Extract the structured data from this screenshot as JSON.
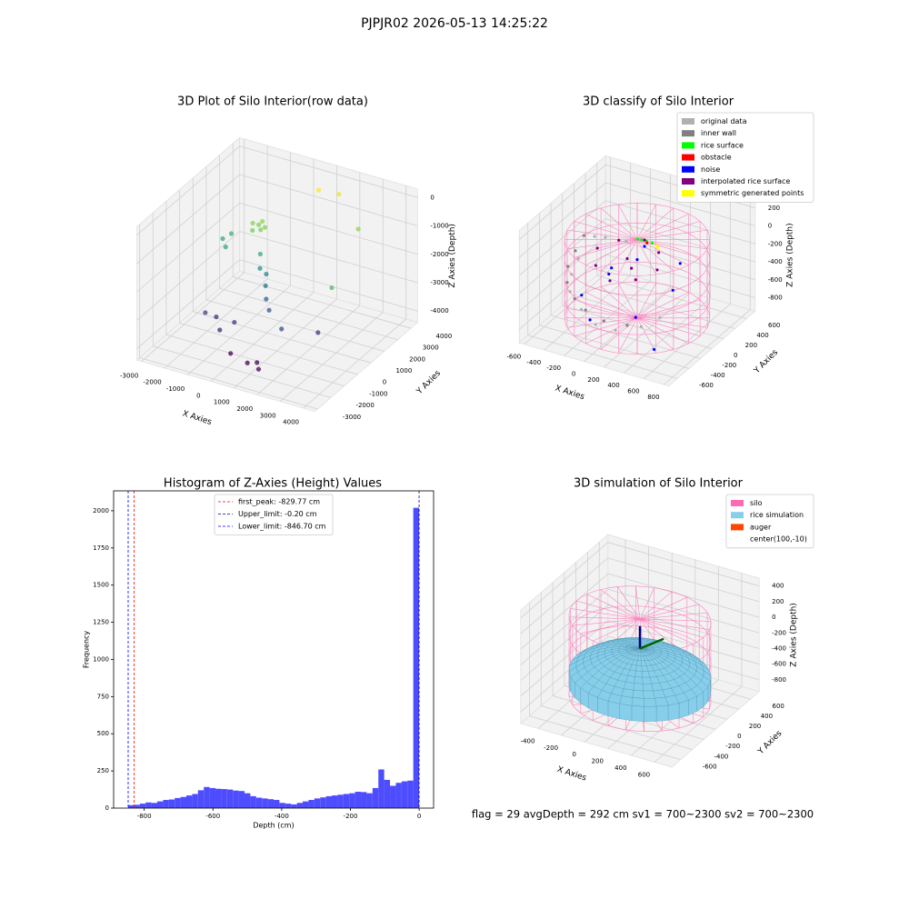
{
  "suptitle": "PJPJR02 2026-05-13 14:25:22",
  "footer": "flag = 29  avgDepth = 292 cm  sv1 = 700~2300  sv2 = 700~2300",
  "chart_data": [
    {
      "type": "scatter3d",
      "title": "3D Plot of Silo Interior(row data)",
      "xlabel": "X Axies",
      "ylabel": "Y Axies",
      "zlabel": "Z Axies (Depth)",
      "xlim": [
        -3200,
        4500
      ],
      "ylim": [
        -3200,
        4500
      ],
      "zlim": [
        -4400,
        300
      ],
      "xticks": [
        -3000,
        -2000,
        -1000,
        0,
        1000,
        2000,
        3000,
        4000
      ],
      "yticks": [
        -3000,
        -2000,
        -1000,
        0,
        1000,
        2000,
        3000,
        4000
      ],
      "zticks": [
        -4000,
        -3000,
        -2000,
        -1000,
        0
      ],
      "colormap": "viridis",
      "x": [
        -900,
        -700,
        -500,
        -800,
        -600,
        -400,
        -2200,
        -2000,
        -1900,
        -400,
        -300,
        -200,
        0,
        200,
        500,
        1500,
        2500,
        -1800,
        -1500,
        -1000,
        -600,
        600,
        900,
        1200,
        -300,
        800,
        1500,
        2800,
        3500
      ],
      "y": [
        1500,
        1600,
        1400,
        1300,
        1700,
        1550,
        1500,
        1800,
        1200,
        1200,
        1000,
        1300,
        900,
        600,
        300,
        -500,
        500,
        -500,
        -200,
        -800,
        -400,
        -1500,
        -1300,
        -1700,
        -1200,
        3500,
        3800,
        3000,
        -200
      ],
      "z": [
        -950,
        -1000,
        -1050,
        -1100,
        -900,
        -1000,
        -1800,
        -1700,
        -1900,
        -1800,
        -2200,
        -2500,
        -2700,
        -3000,
        -3200,
        -3300,
        -3600,
        -3500,
        -3700,
        -3800,
        -3600,
        -4300,
        -4300,
        -4300,
        -4300,
        -200,
        -300,
        -900,
        -1500
      ]
    },
    {
      "type": "scatter3d",
      "title": "3D classify of Silo Interior",
      "xlabel": "X Axies",
      "ylabel": "Y Axies",
      "zlabel": "Z Axies (Depth)",
      "xlim": [
        -650,
        850
      ],
      "ylim": [
        -750,
        750
      ],
      "zlim": [
        -950,
        300
      ],
      "xticks": [
        -600,
        -400,
        -200,
        0,
        200,
        400,
        600,
        800
      ],
      "yticks": [
        -600,
        -400,
        -200,
        0,
        200,
        400,
        600
      ],
      "zticks": [
        -800,
        -600,
        -400,
        -200,
        0,
        200
      ],
      "silo": true,
      "legend": "upper right",
      "series": [
        {
          "name": "original data",
          "color": "#b0b0b0",
          "x": [
            -500,
            -450,
            -300,
            -550,
            -500,
            -400,
            -200,
            0,
            200,
            400,
            500
          ],
          "y": [
            300,
            400,
            500,
            100,
            -100,
            -300,
            -450,
            -550,
            -550,
            -450,
            -300
          ],
          "z": [
            -300,
            -350,
            -400,
            -450,
            -500,
            -550,
            -600,
            -650,
            -650,
            -600,
            -550
          ]
        },
        {
          "name": "inner wall",
          "color": "#808080",
          "x": [
            -550,
            -520,
            -480,
            -400,
            -250,
            -100,
            100,
            300
          ],
          "y": [
            200,
            0,
            -200,
            -350,
            -480,
            -550,
            -580,
            -520
          ],
          "z": [
            -250,
            -300,
            -350,
            -420,
            -480,
            -520,
            -560,
            -580
          ]
        },
        {
          "name": "rice surface",
          "color": "#00ff00",
          "x": [
            0,
            50,
            100,
            -30
          ],
          "y": [
            250,
            250,
            260,
            230
          ],
          "z": [
            -150,
            -150,
            -160,
            -140
          ]
        },
        {
          "name": "obstacle",
          "color": "#ff0000",
          "x": [
            60
          ],
          "y": [
            240
          ],
          "z": [
            -160
          ]
        },
        {
          "name": "noise",
          "color": "#0000ff",
          "x": [
            -300,
            200,
            400,
            -100,
            0,
            -200,
            500,
            300,
            -400,
            100
          ],
          "y": [
            200,
            -200,
            100,
            -100,
            300,
            -300,
            -400,
            400,
            -100,
            0
          ],
          "z": [
            -600,
            -700,
            -500,
            -300,
            -250,
            -800,
            -850,
            -400,
            -700,
            -200
          ]
        },
        {
          "name": "interpolated rice surface",
          "color": "#800080",
          "x": [
            -300,
            -200,
            0,
            200,
            300,
            200,
            0,
            -200,
            0,
            100
          ],
          "y": [
            0,
            -200,
            -300,
            -200,
            0,
            200,
            300,
            200,
            0,
            -100
          ],
          "z": [
            -200,
            -250,
            -300,
            -280,
            -250,
            -200,
            -180,
            -190,
            -220,
            -240
          ]
        },
        {
          "name": "symmetric generated points",
          "color": "#ffff00",
          "x": [
            150,
            170
          ],
          "y": [
            250,
            240
          ],
          "z": [
            -170,
            -175
          ]
        }
      ]
    },
    {
      "type": "histogram",
      "title": "Histogram of Z-Axies (Height) Values",
      "xlabel": "Depth (cm)",
      "ylabel": "Frequency",
      "color": "#4d4dff",
      "xlim": [
        -889,
        42
      ],
      "ylim": [
        0,
        2134
      ],
      "xticks": [
        -800,
        -600,
        -400,
        -200,
        0
      ],
      "yticks": [
        0,
        250,
        500,
        750,
        1000,
        1250,
        1500,
        1750,
        2000
      ],
      "legend": "upper center",
      "bins": [
        -846.7,
        -829.77,
        -812.84,
        -795.91,
        -778.98,
        -762.05,
        -745.12,
        -728.19,
        -711.26,
        -694.33,
        -677.4,
        -660.47,
        -643.54,
        -626.61,
        -609.68,
        -592.75,
        -575.82,
        -558.89,
        -541.96,
        -525.03,
        -508.1,
        -491.17,
        -474.24,
        -457.31,
        -440.38,
        -423.45,
        -406.52,
        -389.59,
        -372.66,
        -355.73,
        -338.8,
        -321.87,
        -304.94,
        -288.01,
        -271.08,
        -254.15,
        -237.22,
        -220.29,
        -203.36,
        -186.43,
        -169.5,
        -152.57,
        -135.64,
        -118.71,
        -101.78,
        -84.85,
        -67.92,
        -50.99,
        -34.06,
        -17.13,
        -0.2
      ],
      "counts": [
        20,
        22,
        30,
        38,
        35,
        45,
        55,
        58,
        68,
        75,
        85,
        95,
        120,
        142,
        135,
        130,
        128,
        125,
        118,
        115,
        100,
        80,
        70,
        65,
        60,
        55,
        35,
        30,
        25,
        35,
        45,
        55,
        65,
        72,
        80,
        85,
        90,
        95,
        100,
        110,
        108,
        100,
        135,
        260,
        190,
        150,
        170,
        180,
        185,
        2020
      ],
      "vlines": [
        {
          "name": "first_peak: -829.77 cm",
          "value": -829.77,
          "color": "#ff0000"
        },
        {
          "name": "Upper_limit: -0.20 cm",
          "value": -0.2,
          "color": "#00008b"
        },
        {
          "name": "Lower_limit: -846.70 cm",
          "value": -846.7,
          "color": "#0000ff"
        }
      ]
    },
    {
      "type": "surface3d",
      "title": "3D simulation of Silo Interior",
      "xlabel": "X Axies",
      "ylabel": "Y Axies",
      "zlabel": "Z Axies (Depth)",
      "xlim": [
        -550,
        750
      ],
      "ylim": [
        -750,
        750
      ],
      "zlim": [
        -950,
        500
      ],
      "xticks": [
        -400,
        -200,
        0,
        200,
        400,
        600
      ],
      "yticks": [
        -600,
        -400,
        -200,
        0,
        200,
        400,
        600
      ],
      "zticks": [
        -800,
        -600,
        -400,
        -200,
        0,
        200,
        400
      ],
      "silo": true,
      "legend": "upper right",
      "series": [
        {
          "name": "silo",
          "color": "#ff69b4"
        },
        {
          "name": "rice simulation",
          "color": "#87ceeb"
        },
        {
          "name": "auger",
          "color": "#ff4500"
        },
        {
          "name": "center(100,-10)"
        }
      ]
    }
  ]
}
